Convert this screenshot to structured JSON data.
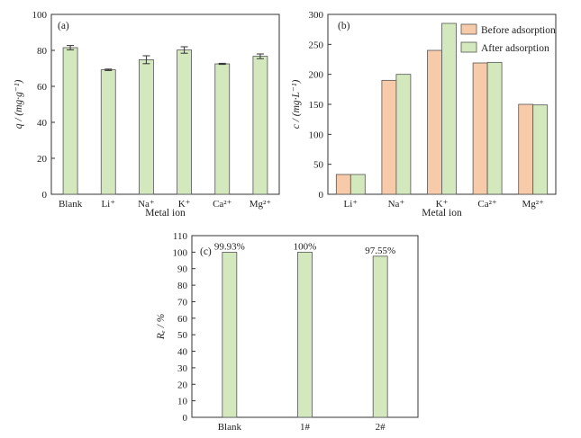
{
  "colors": {
    "after": "#d3e8bd",
    "before": "#f7cbaa",
    "edge": "#555555"
  },
  "chart_data": [
    {
      "id": "a",
      "type": "bar",
      "panel_tag": "(a)",
      "xlabel": "Metal ion",
      "ylabel": "q / (mg·g⁻¹)",
      "ylim": [
        0,
        100
      ],
      "yticks": [
        0,
        20,
        40,
        60,
        80,
        100
      ],
      "categories": [
        "Blank",
        "Li⁺",
        "Na⁺",
        "K⁺",
        "Ca²⁺",
        "Mg²⁺"
      ],
      "series": [
        {
          "values": [
            81.5,
            69.2,
            74.8,
            80.2,
            72.5,
            76.7
          ],
          "errors": [
            1.2,
            0.4,
            2.2,
            1.8,
            0.3,
            1.3
          ]
        }
      ],
      "grid": false
    },
    {
      "id": "b",
      "type": "bar",
      "panel_tag": "(b)",
      "xlabel": "Metal ion",
      "ylabel": "c / (mg·L⁻¹)",
      "ylim": [
        0,
        300
      ],
      "yticks": [
        0,
        50,
        100,
        150,
        200,
        250,
        300
      ],
      "categories": [
        "Li⁺",
        "Na⁺",
        "K⁺",
        "Ca²⁺",
        "Mg²⁺"
      ],
      "series": [
        {
          "name": "Before adsorption",
          "values": [
            33,
            190,
            240,
            219,
            150
          ]
        },
        {
          "name": "After adsorption",
          "values": [
            33,
            200,
            285,
            220,
            149
          ]
        }
      ],
      "legend": "top-right",
      "grid": false
    },
    {
      "id": "c",
      "type": "bar",
      "panel_tag": "(c)",
      "xlabel": "",
      "ylabel": "Rₑ / %",
      "ylim": [
        0,
        110
      ],
      "yticks": [
        0,
        10,
        20,
        30,
        40,
        50,
        60,
        70,
        80,
        90,
        100,
        110
      ],
      "categories": [
        "Blank",
        "1#",
        "2#"
      ],
      "series": [
        {
          "values": [
            99.93,
            100,
            97.55
          ]
        }
      ],
      "data_labels": [
        "99.93%",
        "100%",
        "97.55%"
      ],
      "grid": false
    }
  ]
}
